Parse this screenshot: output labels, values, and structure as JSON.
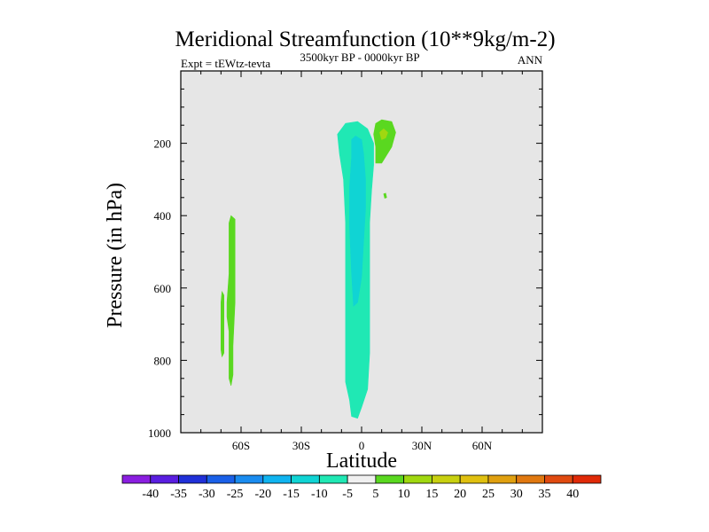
{
  "chart_data": {
    "type": "heatmap",
    "title": "Meridional Streamfunction (10**9kg/m-2)",
    "subtitle_left": "Expt = tEWtz-tevta",
    "subtitle_center": "3500kyr BP - 0000kyr BP",
    "subtitle_right": "ANN",
    "xlabel": "Latitude",
    "ylabel": "Pressure (in hPa)",
    "xlim": [
      -90,
      90
    ],
    "ylim": [
      1000,
      0
    ],
    "x_ticks": [
      -60,
      -30,
      0,
      30,
      60
    ],
    "x_tick_labels": [
      "60S",
      "30S",
      "0",
      "30N",
      "60N"
    ],
    "y_ticks": [
      200,
      400,
      600,
      800,
      1000
    ],
    "y_tick_labels": [
      "200",
      "400",
      "600",
      "800",
      "1000"
    ],
    "background_color": "#e6e6e6",
    "colorbar": {
      "labels": [
        "-40",
        "-35",
        "-30",
        "-25",
        "-20",
        "-15",
        "-10",
        "-5",
        "5",
        "10",
        "15",
        "20",
        "25",
        "30",
        "35",
        "40"
      ],
      "colors": [
        "#8a1ee0",
        "#5a1ee0",
        "#2030d8",
        "#1a60e8",
        "#1a8cf0",
        "#10b4f0",
        "#10d4d4",
        "#20e8b4",
        "#f0f0f0",
        "#5ad820",
        "#a0d810",
        "#c8d010",
        "#e0c010",
        "#e0a010",
        "#e07810",
        "#e04a10",
        "#e02a08"
      ]
    },
    "regions": [
      {
        "name": "tropical-cyan-band",
        "value": -7.5,
        "color": "#20e8b4",
        "points": [
          [
            -12,
            175
          ],
          [
            -8,
            145
          ],
          [
            -2,
            140
          ],
          [
            3,
            160
          ],
          [
            6,
            200
          ],
          [
            6,
            260
          ],
          [
            5,
            330
          ],
          [
            4,
            420
          ],
          [
            4,
            520
          ],
          [
            4,
            650
          ],
          [
            4,
            780
          ],
          [
            3,
            880
          ],
          [
            0,
            930
          ],
          [
            -2,
            960
          ],
          [
            -5,
            955
          ],
          [
            -6,
            910
          ],
          [
            -8,
            860
          ],
          [
            -8,
            780
          ],
          [
            -8,
            600
          ],
          [
            -8,
            420
          ],
          [
            -9,
            300
          ],
          [
            -11,
            230
          ]
        ]
      },
      {
        "name": "tropical-core-band",
        "value": -12.5,
        "color": "#10d4d4",
        "points": [
          [
            -5,
            190
          ],
          [
            -3,
            180
          ],
          [
            0,
            190
          ],
          [
            1,
            230
          ],
          [
            2,
            300
          ],
          [
            2,
            380
          ],
          [
            1,
            470
          ],
          [
            0,
            570
          ],
          [
            -2,
            640
          ],
          [
            -4,
            650
          ],
          [
            -5,
            560
          ],
          [
            -6,
            430
          ],
          [
            -6,
            320
          ],
          [
            -5,
            240
          ]
        ]
      },
      {
        "name": "upper-positive-cell",
        "value": 7.5,
        "color": "#5ad820",
        "points": [
          [
            7,
            145
          ],
          [
            10,
            135
          ],
          [
            15,
            140
          ],
          [
            17,
            170
          ],
          [
            15,
            210
          ],
          [
            10,
            255
          ],
          [
            7,
            255
          ],
          [
            7,
            210
          ],
          [
            6,
            175
          ]
        ]
      },
      {
        "name": "upper-positive-core",
        "value": 12.5,
        "color": "#a0d810",
        "points": [
          [
            9,
            170
          ],
          [
            11,
            160
          ],
          [
            13,
            170
          ],
          [
            12,
            185
          ],
          [
            10,
            190
          ]
        ]
      },
      {
        "name": "upper-positive-speck",
        "value": 7.5,
        "color": "#5ad820",
        "points": [
          [
            11,
            340
          ],
          [
            12,
            338
          ],
          [
            12.5,
            350
          ],
          [
            11.5,
            352
          ]
        ]
      },
      {
        "name": "southern-positive-strip",
        "value": 7.5,
        "color": "#5ad820",
        "points": [
          [
            -65,
            400
          ],
          [
            -63,
            410
          ],
          [
            -63,
            560
          ],
          [
            -63,
            640
          ],
          [
            -64,
            760
          ],
          [
            -64,
            840
          ],
          [
            -65,
            870
          ],
          [
            -66,
            850
          ],
          [
            -66,
            760
          ],
          [
            -66,
            720
          ],
          [
            -67,
            680
          ],
          [
            -67,
            640
          ],
          [
            -66,
            560
          ],
          [
            -66,
            470
          ],
          [
            -66,
            420
          ]
        ]
      },
      {
        "name": "southern-positive-sliver",
        "value": 7.5,
        "color": "#5ad820",
        "points": [
          [
            -69.5,
            610
          ],
          [
            -68.5,
            620
          ],
          [
            -68.5,
            780
          ],
          [
            -69.5,
            790
          ],
          [
            -70,
            770
          ],
          [
            -70,
            640
          ]
        ]
      }
    ]
  }
}
